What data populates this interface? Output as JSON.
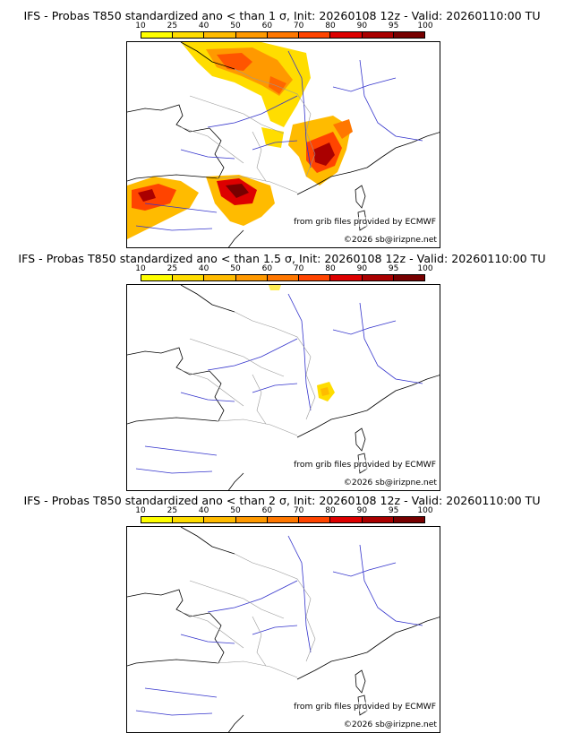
{
  "colorbar": {
    "ticks": [
      "10",
      "25",
      "40",
      "50",
      "60",
      "70",
      "80",
      "90",
      "95",
      "100"
    ],
    "colors": [
      "#ffff00",
      "#ffdd00",
      "#ffbb00",
      "#ff9900",
      "#ff7700",
      "#ff4400",
      "#dd0000",
      "#aa0000",
      "#770000"
    ]
  },
  "credit": "from grib files provided by ECMWF",
  "copyright": "©2026 sb@irizpne.net",
  "panels": [
    {
      "title": "IFS - Probas T850  standardized ano < than 1 σ, Init: 20260108 12z - Valid: 20260110:00 TU"
    },
    {
      "title": "IFS - Probas T850  standardized ano < than 1.5 σ, Init: 20260108 12z - Valid: 20260110:00 TU"
    },
    {
      "title": "IFS - Probas T850  standardized ano < than 2 σ, Init: 20260108 12z - Valid: 20260110:00 TU"
    }
  ]
}
